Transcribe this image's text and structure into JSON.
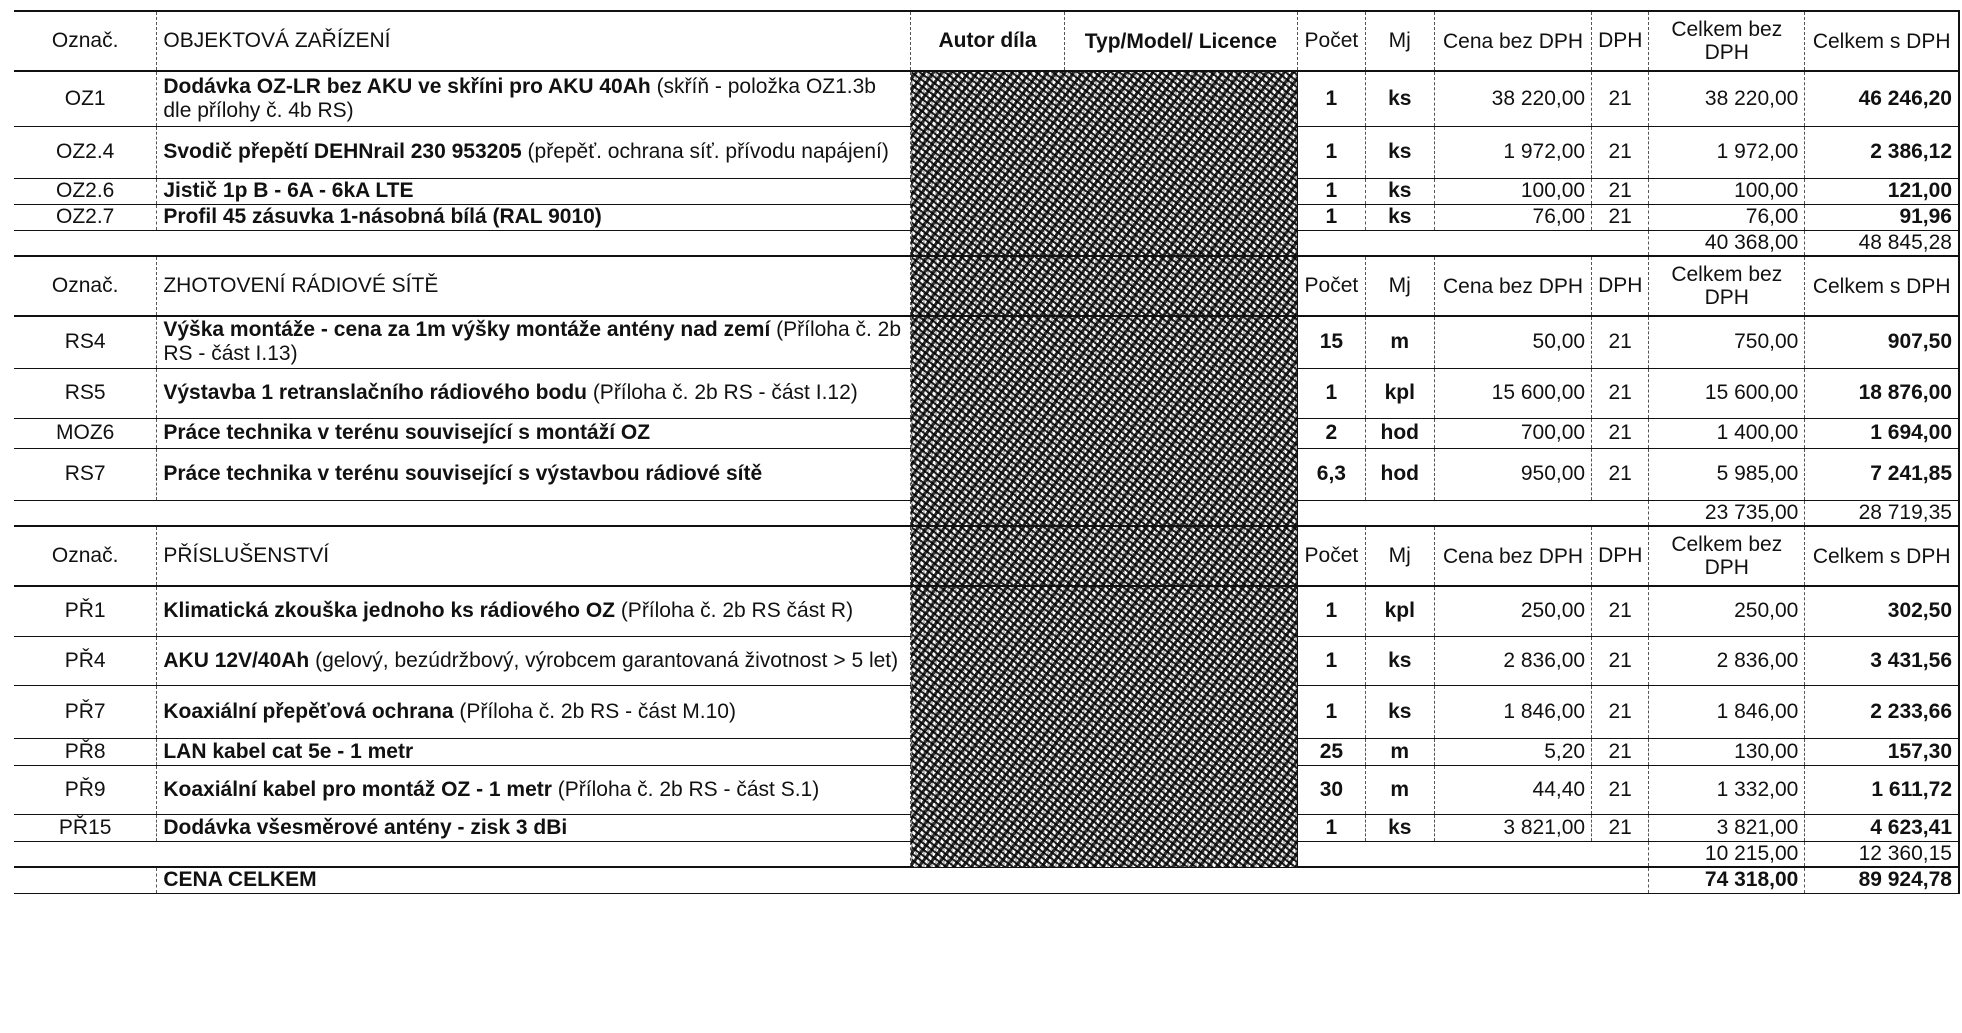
{
  "headers": {
    "oznac": "Označ.",
    "autor": "Autor díla",
    "typ": "Typ/Model/ Licence",
    "pocet": "Počet",
    "mj": "Mj",
    "cena": "Cena bez DPH",
    "dph": "DPH",
    "celkem_bez": "Celkem bez DPH",
    "celkem_s": "Celkem s DPH"
  },
  "sections": [
    {
      "title": "OBJEKTOVÁ ZAŘÍZENÍ",
      "rows": [
        {
          "code": "OZ1",
          "name": "Dodávka OZ-LR bez AKU ve skříni pro AKU 40Ah",
          "note": " (skříň - položka OZ1.3b dle přílohy č. 4b RS)",
          "qty": "1",
          "unit": "ks",
          "price": "38 220,00",
          "vat": "21",
          "total": "38 220,00",
          "total_vat": "46 246,20"
        },
        {
          "code": "OZ2.4",
          "name": "Svodič přepětí DEHNrail 230 953205",
          "note": " (přepěť. ochrana síť. přívodu napájení)",
          "qty": "1",
          "unit": "ks",
          "price": "1 972,00",
          "vat": "21",
          "total": "1 972,00",
          "total_vat": "2 386,12"
        },
        {
          "code": "OZ2.6",
          "name": "Jistič 1p B - 6A - 6kA LTE",
          "note": "",
          "qty": "1",
          "unit": "ks",
          "price": "100,00",
          "vat": "21",
          "total": "100,00",
          "total_vat": "121,00"
        },
        {
          "code": "OZ2.7",
          "name": "Profil 45 zásuvka 1-násobná bílá (RAL 9010)",
          "note": "",
          "qty": "1",
          "unit": "ks",
          "price": "76,00",
          "vat": "21",
          "total": "76,00",
          "total_vat": "91,96"
        }
      ],
      "subtotal": "40 368,00",
      "subtotal_vat": "48 845,28"
    },
    {
      "title": "ZHOTOVENÍ RÁDIOVÉ SÍTĚ",
      "rows": [
        {
          "code": "RS4",
          "name": "Výška montáže - cena za 1m výšky montáže antény nad zemí",
          "note": " (Příloha č. 2b RS - část I.13)",
          "qty": "15",
          "unit": "m",
          "price": "50,00",
          "vat": "21",
          "total": "750,00",
          "total_vat": "907,50"
        },
        {
          "code": "RS5",
          "name": "Výstavba 1 retranslačního rádiového bodu",
          "note": " (Příloha č. 2b RS - část I.12)",
          "qty": "1",
          "unit": "kpl",
          "price": "15 600,00",
          "vat": "21",
          "total": "15 600,00",
          "total_vat": "18 876,00"
        },
        {
          "code": "MOZ6",
          "name": "Práce technika v terénu související s montáží OZ",
          "note": "",
          "qty": "2",
          "unit": "hod",
          "price": "700,00",
          "vat": "21",
          "total": "1 400,00",
          "total_vat": "1 694,00"
        },
        {
          "code": "RS7",
          "name": "Práce technika v terénu související s výstavbou rádiové sítě",
          "note": "",
          "qty": "6,3",
          "unit": "hod",
          "price": "950,00",
          "vat": "21",
          "total": "5 985,00",
          "total_vat": "7 241,85"
        }
      ],
      "subtotal": "23 735,00",
      "subtotal_vat": "28 719,35"
    },
    {
      "title": "PŘÍSLUŠENSTVÍ",
      "rows": [
        {
          "code": "PŘ1",
          "name": "Klimatická zkouška jednoho ks rádiového OZ",
          "note": " (Příloha č. 2b RS část R)",
          "qty": "1",
          "unit": "kpl",
          "price": "250,00",
          "vat": "21",
          "total": "250,00",
          "total_vat": "302,50"
        },
        {
          "code": "PŘ4",
          "name": "AKU 12V/40Ah",
          "note": " (gelový, bezúdržbový, výrobcem garantovaná životnost > 5 let)",
          "qty": "1",
          "unit": "ks",
          "price": "2 836,00",
          "vat": "21",
          "total": "2 836,00",
          "total_vat": "3 431,56"
        },
        {
          "code": "PŘ7",
          "name": "Koaxiální přepěťová ochrana",
          "note": "  (Příloha č. 2b RS - část M.10)",
          "qty": "1",
          "unit": "ks",
          "price": "1 846,00",
          "vat": "21",
          "total": "1 846,00",
          "total_vat": "2 233,66"
        },
        {
          "code": "PŘ8",
          "name": "LAN kabel cat 5e - 1 metr",
          "note": "",
          "qty": "25",
          "unit": "m",
          "price": "5,20",
          "vat": "21",
          "total": "130,00",
          "total_vat": "157,30"
        },
        {
          "code": "PŘ9",
          "name": "Koaxiální kabel pro montáž OZ - 1 metr",
          "note": "  (Příloha č. 2b RS - část S.1)",
          "qty": "30",
          "unit": "m",
          "price": "44,40",
          "vat": "21",
          "total": "1 332,00",
          "total_vat": "1 611,72"
        },
        {
          "code": "PŘ15",
          "name": "Dodávka všesměrové antény - zisk 3 dBi",
          "note": "",
          "qty": "1",
          "unit": "ks",
          "price": "3 821,00",
          "vat": "21",
          "total": "3 821,00",
          "total_vat": "4 623,41"
        }
      ],
      "subtotal": "10 215,00",
      "subtotal_vat": "12 360,15"
    }
  ],
  "grand_total": {
    "label": "CENA CELKEM",
    "total": "74 318,00",
    "total_vat": "89 924,78"
  }
}
